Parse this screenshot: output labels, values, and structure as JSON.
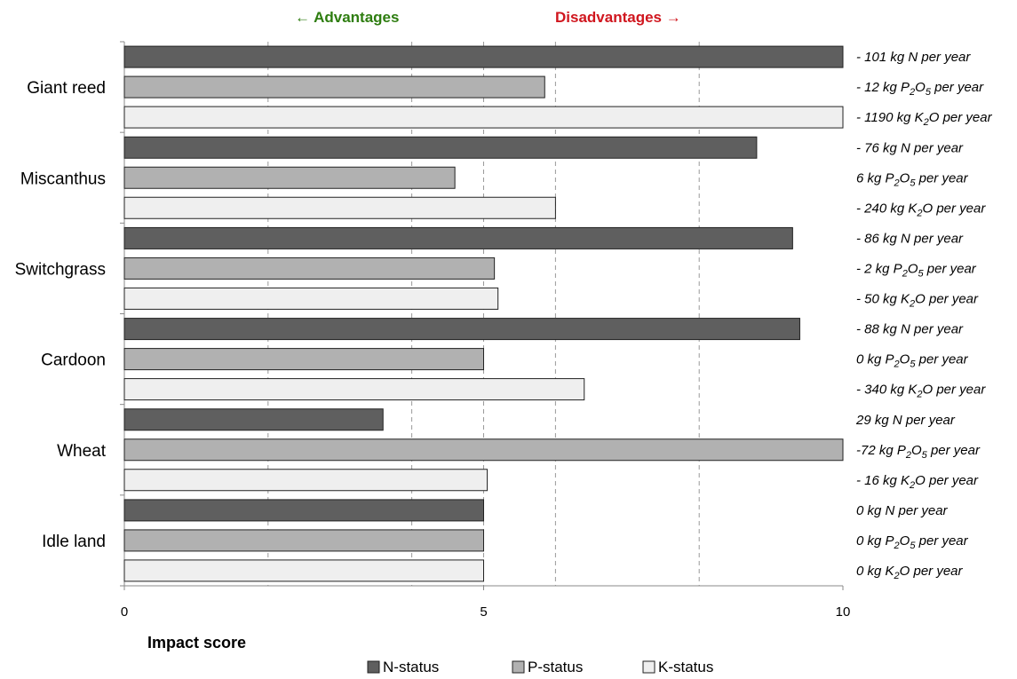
{
  "chart_data": {
    "type": "bar",
    "orientation": "horizontal",
    "header": {
      "advantages": "← Advantages",
      "disadvantages": "Disadvantages →",
      "advantages_color": "#2e7d10",
      "disadvantages_color": "#d0161e"
    },
    "xlabel": "Impact score",
    "xlim": [
      0,
      10
    ],
    "x_ticks": [
      "0",
      "5",
      "10"
    ],
    "grid": "vertical dashed at 2, 4, 5, 6, 8",
    "categories": [
      "Giant reed",
      "Miscanthus",
      "Switchgrass",
      "Cardoon",
      "Wheat",
      "Idle land"
    ],
    "series": [
      {
        "name": "N-status",
        "color": "#5f5f5f",
        "values": [
          10,
          8.8,
          9.3,
          9.4,
          3.6,
          5
        ]
      },
      {
        "name": "P-status",
        "color": "#b1b1b1",
        "values": [
          5.85,
          4.6,
          5.15,
          5,
          10,
          5
        ]
      },
      {
        "name": "K-status",
        "color": "#efefef",
        "values": [
          10,
          6,
          5.2,
          6.4,
          5.05,
          5
        ]
      }
    ],
    "annotations": [
      [
        {
          "pre": "- 101 kg N per year",
          "sub": "",
          "post": ""
        },
        {
          "pre": "- 12 kg P",
          "sub": "2",
          "mid": "O",
          "sub2": "5",
          "post": " per year"
        },
        {
          "pre": "- 1190 kg K",
          "sub": "2",
          "post": "O per year"
        }
      ],
      [
        {
          "pre": "- 76  kg N per year",
          "sub": "",
          "post": ""
        },
        {
          "pre": "6 kg P",
          "sub": "2",
          "mid": "O",
          "sub2": "5",
          "post": " per year"
        },
        {
          "pre": "- 240 kg K",
          "sub": "2",
          "post": "O per year"
        }
      ],
      [
        {
          "pre": "- 86 kg N per year",
          "sub": "",
          "post": ""
        },
        {
          "pre": "- 2 kg P",
          "sub": "2",
          "mid": "O",
          "sub2": "5",
          "post": " per year"
        },
        {
          "pre": "- 50 kg K",
          "sub": "2",
          "post": "O per year"
        }
      ],
      [
        {
          "pre": "- 88 kg N per year",
          "sub": "",
          "post": ""
        },
        {
          "pre": "0 kg P",
          "sub": "2",
          "mid": "O",
          "sub2": "5",
          "post": " per year"
        },
        {
          "pre": "- 340 kg K",
          "sub": "2",
          "post": "O per year"
        }
      ],
      [
        {
          "pre": "29  kg N per year",
          "sub": "",
          "post": ""
        },
        {
          "pre": "-72 kg P",
          "sub": "2",
          "mid": "O",
          "sub2": "5",
          "post": " per year"
        },
        {
          "pre": "- 16 kg K",
          "sub": "2",
          "post": "O per year"
        }
      ],
      [
        {
          "pre": "0 kg N per year",
          "sub": "",
          "post": ""
        },
        {
          "pre": "0 kg P",
          "sub": "2",
          "mid": "O",
          "sub2": "5",
          "post": " per year"
        },
        {
          "pre": "0 kg K",
          "sub": "2",
          "post": "O per year"
        }
      ]
    ],
    "legend_position": "bottom"
  }
}
